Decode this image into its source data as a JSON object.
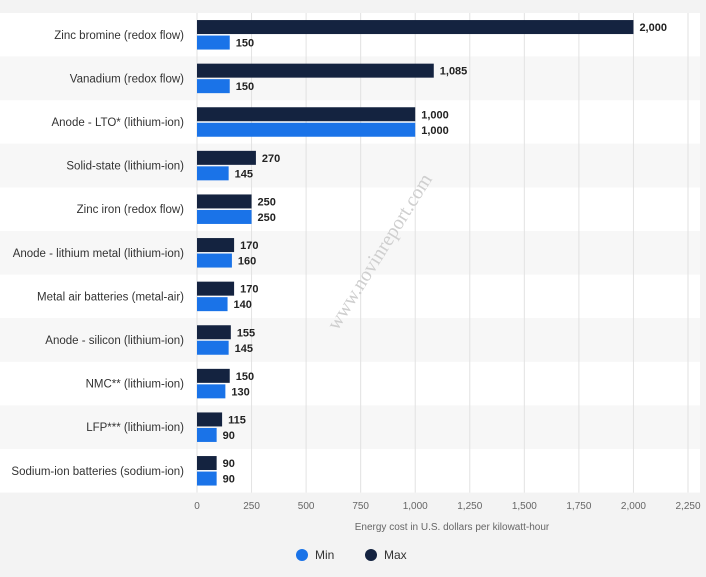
{
  "chart_data": {
    "type": "bar",
    "orientation": "horizontal",
    "categories": [
      "Zinc bromine (redox flow)",
      "Vanadium (redox flow)",
      "Anode - LTO* (lithium-ion)",
      "Solid-state (lithium-ion)",
      "Zinc iron (redox flow)",
      "Anode - lithium metal (lithium-ion)",
      "Metal air batteries (metal-air)",
      "Anode - silicon (lithium-ion)",
      "NMC** (lithium-ion)",
      "LFP*** (lithium-ion)",
      "Sodium-ion batteries (sodium-ion)"
    ],
    "series": [
      {
        "name": "Max",
        "color": "#142340",
        "values": [
          2000,
          1085,
          1000,
          270,
          250,
          170,
          170,
          155,
          150,
          115,
          90
        ],
        "labels": [
          "2,000",
          "1,085",
          "1,000",
          "270",
          "250",
          "170",
          "170",
          "155",
          "150",
          "115",
          "90"
        ]
      },
      {
        "name": "Min",
        "color": "#1a73e8",
        "values": [
          150,
          150,
          1000,
          145,
          250,
          160,
          140,
          145,
          130,
          90,
          90
        ],
        "labels": [
          "150",
          "150",
          "1,000",
          "145",
          "250",
          "160",
          "140",
          "145",
          "130",
          "90",
          "90"
        ]
      }
    ],
    "xlim": [
      0,
      2250
    ],
    "xticks": [
      0,
      250,
      500,
      750,
      1000,
      1250,
      1500,
      1750,
      2000,
      2250
    ],
    "xtick_labels": [
      "0",
      "250",
      "500",
      "750",
      "1,000",
      "1,250",
      "1,500",
      "1,750",
      "2,000",
      "2,250"
    ],
    "xlabel": "Energy cost in U.S. dollars per kilowatt-hour",
    "legend": {
      "position": "bottom",
      "order": [
        "Min",
        "Max"
      ]
    },
    "grid": true
  },
  "watermark": "www.novinreport.com"
}
